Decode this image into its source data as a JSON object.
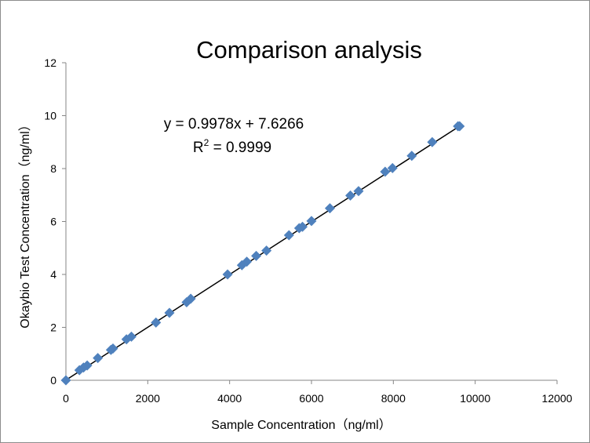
{
  "chart_data": {
    "type": "scatter",
    "title": "Comparison analysis",
    "xlabel": "Sample Concentration（ng/ml）",
    "ylabel": "Okaybio Test Concentration（ng/ml）",
    "xlim": [
      0,
      12000
    ],
    "ylim": [
      0,
      12
    ],
    "xticks": [
      "0",
      "2000",
      "4000",
      "6000",
      "8000",
      "10000",
      "12000"
    ],
    "yticks": [
      "0",
      "2",
      "4",
      "6",
      "8",
      "10",
      "12"
    ],
    "grid": false,
    "legend": "none",
    "marker_color": "#4F81BD",
    "trendline_color": "#000000",
    "trendline": {
      "x": [
        0,
        9600
      ],
      "y": [
        0.0076,
        9.586
      ]
    },
    "equation": "y = 0.9978x + 7.6266",
    "r_squared": {
      "prefix": "R",
      "sup": "2",
      "rest": " = 0.9999"
    },
    "series": [
      {
        "x": [
          0,
          330,
          430,
          520,
          780,
          1100,
          1150,
          1480,
          1600,
          2200,
          2530,
          2950,
          3050,
          3950,
          4300,
          4420,
          4650,
          4900,
          5450,
          5700,
          5780,
          6000,
          6450,
          6950,
          7150,
          7800,
          7980,
          8450,
          8950,
          9580,
          9620
        ],
        "y": [
          0,
          0.38,
          0.48,
          0.56,
          0.84,
          1.15,
          1.2,
          1.55,
          1.65,
          2.18,
          2.55,
          2.95,
          3.08,
          4.0,
          4.35,
          4.48,
          4.7,
          4.9,
          5.48,
          5.75,
          5.8,
          6.02,
          6.5,
          6.98,
          7.15,
          7.88,
          8.02,
          8.48,
          9.0,
          9.6,
          9.6
        ]
      }
    ]
  }
}
